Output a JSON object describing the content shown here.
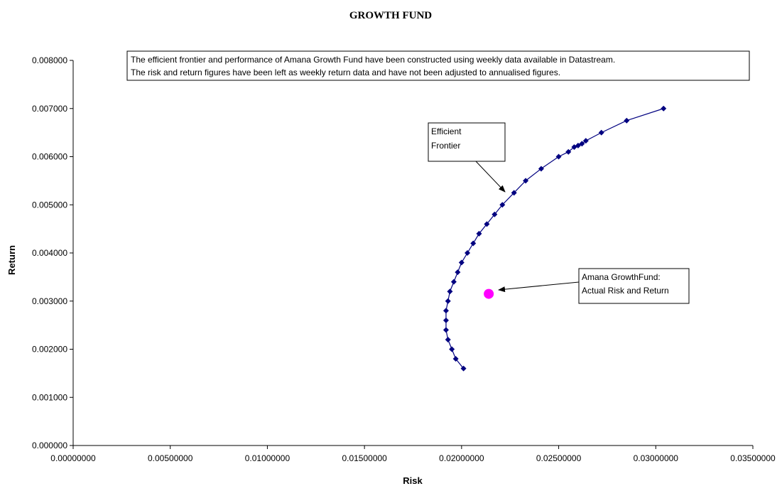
{
  "chart_data": {
    "type": "scatter",
    "title": "GROWTH FUND",
    "xlabel": "Risk",
    "ylabel": "Return",
    "xlim": [
      0,
      0.035
    ],
    "ylim": [
      0,
      0.008
    ],
    "xticks": [
      0,
      0.005,
      0.01,
      0.015,
      0.02,
      0.025,
      0.03,
      0.035
    ],
    "xtick_labels": [
      "0.00000000",
      "0.00500000",
      "0.01000000",
      "0.01500000",
      "0.02000000",
      "0.02500000",
      "0.03000000",
      "0.03500000"
    ],
    "yticks": [
      0,
      0.001,
      0.002,
      0.003,
      0.004,
      0.005,
      0.006,
      0.007,
      0.008
    ],
    "ytick_labels": [
      "0.000000",
      "0.001000",
      "0.002000",
      "0.003000",
      "0.004000",
      "0.005000",
      "0.006000",
      "0.007000",
      "0.008000"
    ],
    "grid": false,
    "series": [
      {
        "color": "#000080",
        "marker": "diamond",
        "line": true,
        "points": [
          [
            0.0201,
            0.0016
          ],
          [
            0.0197,
            0.0018
          ],
          [
            0.0195,
            0.002
          ],
          [
            0.0193,
            0.0022
          ],
          [
            0.0192,
            0.0024
          ],
          [
            0.0192,
            0.0026
          ],
          [
            0.0192,
            0.0028
          ],
          [
            0.0193,
            0.003
          ],
          [
            0.0194,
            0.0032
          ],
          [
            0.0196,
            0.0034
          ],
          [
            0.0198,
            0.0036
          ],
          [
            0.02,
            0.0038
          ],
          [
            0.0203,
            0.004
          ],
          [
            0.0206,
            0.0042
          ],
          [
            0.0209,
            0.0044
          ],
          [
            0.0213,
            0.0046
          ],
          [
            0.0217,
            0.0048
          ],
          [
            0.0221,
            0.005
          ],
          [
            0.0227,
            0.00525
          ],
          [
            0.0233,
            0.0055
          ],
          [
            0.0241,
            0.00575
          ],
          [
            0.025,
            0.006
          ],
          [
            0.0255,
            0.0061
          ],
          [
            0.0258,
            0.0062
          ],
          [
            0.026,
            0.00623
          ],
          [
            0.0262,
            0.00627
          ],
          [
            0.0264,
            0.00633
          ],
          [
            0.0272,
            0.0065
          ],
          [
            0.0285,
            0.00675
          ],
          [
            0.0304,
            0.007
          ]
        ]
      },
      {
        "color": "#ff00ff",
        "marker": "circle",
        "line": false,
        "points": [
          [
            0.0214,
            0.00315
          ]
        ]
      }
    ],
    "annotations": {
      "note_line1": "The efficient frontier and performance of Amana Growth Fund have been constructed using weekly data available in Datastream.",
      "note_line2": "The risk and return figures have been left as weekly return data and have not been adjusted to annualised figures.",
      "frontier_line1": "Efficient",
      "frontier_line2": "Frontier",
      "fund_line1": "Amana GrowthFund:",
      "fund_line2": "Actual Risk and Return"
    }
  }
}
